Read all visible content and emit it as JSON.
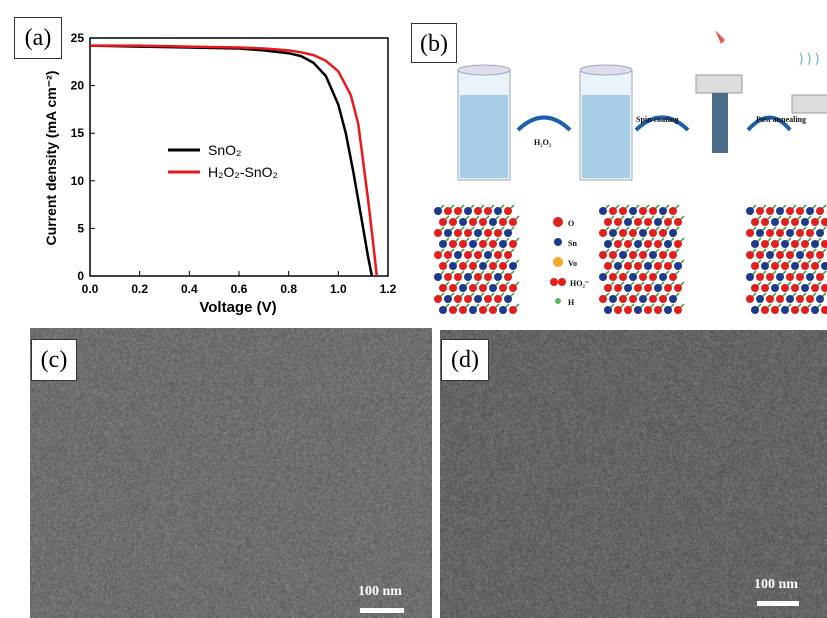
{
  "panels": {
    "a": {
      "label": "(a)"
    },
    "b": {
      "label": "(b)"
    },
    "c": {
      "label": "(c)",
      "scale": "100 nm"
    },
    "d": {
      "label": "(d)",
      "scale": "100 nm"
    }
  },
  "chart_data": {
    "type": "line",
    "xlabel": "Voltage (V)",
    "ylabel": "Current density (mA cm⁻²)",
    "xlim": [
      0.0,
      1.2
    ],
    "ylim": [
      0,
      25
    ],
    "xticks": [
      "0.0",
      "0.2",
      "0.4",
      "0.6",
      "0.8",
      "1.0",
      "1.2"
    ],
    "yticks": [
      "0",
      "5",
      "10",
      "15",
      "20",
      "25"
    ],
    "legend_position": "center",
    "series": [
      {
        "name": "SnO₂",
        "color": "#000000",
        "x": [
          0.0,
          0.2,
          0.4,
          0.6,
          0.7,
          0.8,
          0.85,
          0.9,
          0.95,
          1.0,
          1.03,
          1.06,
          1.08,
          1.1,
          1.12,
          1.135
        ],
        "y": [
          24.2,
          24.1,
          24.0,
          23.9,
          23.7,
          23.4,
          23.1,
          22.4,
          21.0,
          18.0,
          15.0,
          11.0,
          8.0,
          5.0,
          2.0,
          0.0
        ]
      },
      {
        "name": "H₂O₂-SnO₂",
        "color": "#e8191c",
        "x": [
          0.0,
          0.2,
          0.4,
          0.6,
          0.7,
          0.8,
          0.85,
          0.9,
          0.95,
          1.0,
          1.05,
          1.08,
          1.1,
          1.12,
          1.14,
          1.155
        ],
        "y": [
          24.2,
          24.2,
          24.1,
          24.0,
          23.9,
          23.7,
          23.5,
          23.2,
          22.6,
          21.5,
          19.0,
          16.0,
          12.0,
          8.0,
          3.5,
          0.0
        ]
      }
    ]
  },
  "scheme": {
    "steps": [
      "H₂O₂",
      "Spin coating",
      "Post annealing"
    ],
    "legend": [
      "O",
      "Sn",
      "Vo",
      "HO₂⁻",
      "H"
    ]
  }
}
